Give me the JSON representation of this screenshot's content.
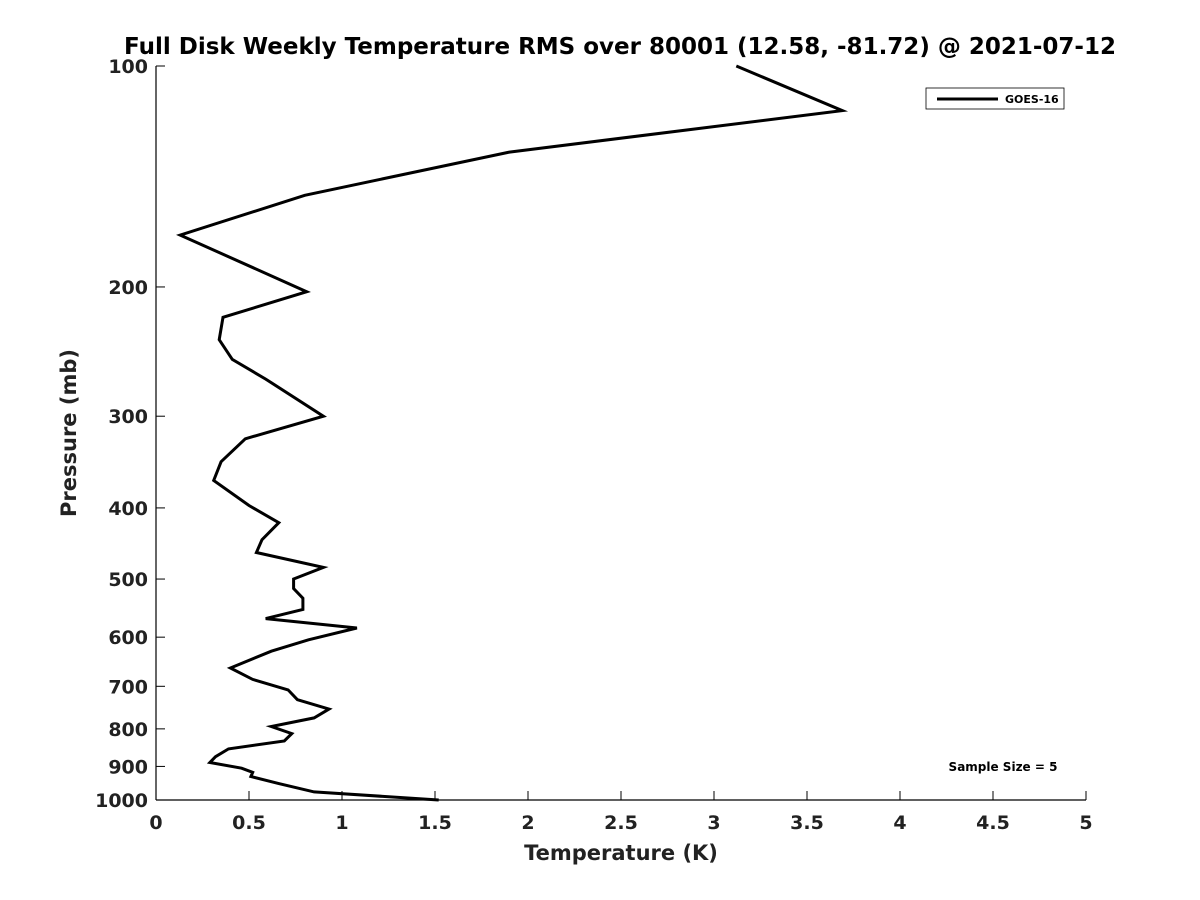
{
  "chart_data": {
    "type": "line",
    "title": "Full Disk Weekly Temperature RMS over 80001 (12.58, -81.72) @ 2021-07-12",
    "xlabel": "Temperature (K)",
    "ylabel": "Pressure (mb)",
    "xlim": [
      0,
      5
    ],
    "ylim": [
      100,
      1000
    ],
    "y_scale": "log",
    "y_reversed": true,
    "x_ticks": [
      "0",
      "0.5",
      "1",
      "1.5",
      "2",
      "2.5",
      "3",
      "3.5",
      "4",
      "4.5",
      "5"
    ],
    "y_ticks": [
      "100",
      "200",
      "300",
      "400",
      "500",
      "600",
      "700",
      "800",
      "900",
      "1000"
    ],
    "grid": false,
    "legend_position": "top-right",
    "series": [
      {
        "name": "GOES-16",
        "color": "#000000",
        "x": [
          3.12,
          3.69,
          1.9,
          0.8,
          0.13,
          0.81,
          0.36,
          0.34,
          0.41,
          0.59,
          0.9,
          0.48,
          0.35,
          0.31,
          0.5,
          0.66,
          0.57,
          0.54,
          0.9,
          0.74,
          0.74,
          0.79,
          0.79,
          0.59,
          1.08,
          0.82,
          0.62,
          0.4,
          0.52,
          0.71,
          0.76,
          0.93,
          0.85,
          0.62,
          0.73,
          0.69,
          0.39,
          0.32,
          0.29,
          0.46,
          0.52,
          0.51,
          0.66,
          0.85,
          1.52
        ],
        "y": [
          100,
          115,
          131,
          150,
          170,
          203,
          220,
          236,
          251,
          267,
          300,
          322,
          346,
          367,
          397,
          419,
          442,
          460,
          482,
          500,
          515,
          531,
          550,
          566,
          583,
          605,
          627,
          661,
          685,
          708,
          730,
          752,
          773,
          794,
          812,
          831,
          852,
          873,
          889,
          905,
          917,
          929,
          950,
          975,
          1000
        ]
      }
    ],
    "annotations": [
      "Sample Size = 5"
    ]
  }
}
